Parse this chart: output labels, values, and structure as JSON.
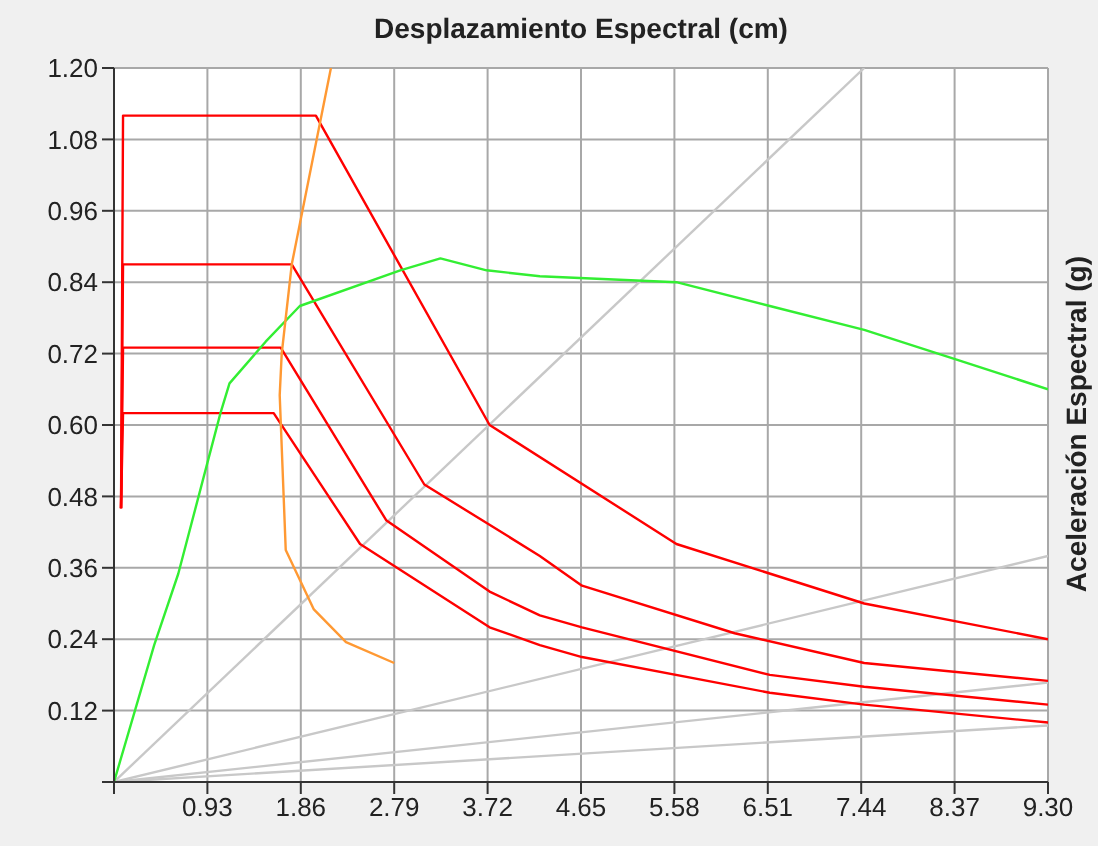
{
  "chart_data": {
    "type": "line",
    "xlabel": "Desplazamiento Espectral (cm)",
    "ylabel": "Aceleración Espectral (g)",
    "xlim": [
      0,
      9.3
    ],
    "xticks": [
      {
        "value": 0,
        "label": null
      },
      0.93,
      1.86,
      2.79,
      3.72,
      4.65,
      5.58,
      6.51,
      7.44,
      8.37,
      "9.30"
    ],
    "ylim": [
      0,
      1.2
    ],
    "yticks": [
      {
        "value": 0,
        "label": null
      },
      0.12,
      0.24,
      0.36,
      0.48,
      "0.60",
      0.72,
      0.84,
      0.96,
      1.08,
      "1.20"
    ],
    "grid": true,
    "series": [
      {
        "color": "#c8c8c8",
        "x": [
          0,
          7.47
        ],
        "values": [
          0,
          1.2
        ]
      },
      {
        "color": "#c8c8c8",
        "x": [
          0,
          9.3
        ],
        "values": [
          0,
          0.38
        ]
      },
      {
        "color": "#c8c8c8",
        "x": [
          0,
          9.3
        ],
        "values": [
          0,
          0.167
        ]
      },
      {
        "color": "#c8c8c8",
        "x": [
          0,
          9.3
        ],
        "values": [
          0,
          0.095
        ]
      },
      {
        "color": "#ff0000",
        "x": [
          0.07,
          0.09,
          2.01,
          3.74,
          5.6,
          7.47,
          9.3
        ],
        "values": [
          0.46,
          1.12,
          1.12,
          0.6,
          0.4,
          0.3,
          0.24
        ]
      },
      {
        "color": "#ff0000",
        "x": [
          0.07,
          0.09,
          1.77,
          3.09,
          4.24,
          4.66,
          6.18,
          7.47,
          9.3
        ],
        "values": [
          0.46,
          0.87,
          0.87,
          0.5,
          0.38,
          0.33,
          0.25,
          0.2,
          0.17
        ]
      },
      {
        "color": "#ff0000",
        "x": [
          0.07,
          0.09,
          1.66,
          2.71,
          3.74,
          4.24,
          4.66,
          6.53,
          7.47,
          9.3
        ],
        "values": [
          0.46,
          0.73,
          0.73,
          0.44,
          0.32,
          0.28,
          0.26,
          0.18,
          0.16,
          0.13
        ]
      },
      {
        "color": "#ff0000",
        "x": [
          0.07,
          0.09,
          1.59,
          2.45,
          3.74,
          4.24,
          4.66,
          6.53,
          7.47,
          9.3
        ],
        "values": [
          0.46,
          0.62,
          0.62,
          0.4,
          0.26,
          0.23,
          0.21,
          0.15,
          0.13,
          0.1
        ]
      },
      {
        "color": "#33ee33",
        "x": [
          0,
          0.4,
          0.64,
          1.06,
          1.15,
          1.51,
          1.85,
          2.85,
          3.25,
          3.71,
          4.24,
          5.6,
          6.53,
          7.47,
          8.39,
          9.3
        ],
        "values": [
          0,
          0.23,
          0.35,
          0.62,
          0.67,
          0.74,
          0.8,
          0.86,
          0.88,
          0.86,
          0.85,
          0.84,
          0.8,
          0.76,
          0.71,
          0.66
        ]
      },
      {
        "color": "#ff9933",
        "x": [
          2.79,
          2.31,
          1.99,
          1.71,
          1.65,
          1.67,
          1.77,
          2.16
        ],
        "values": [
          0.2,
          0.235,
          0.29,
          0.39,
          0.65,
          0.72,
          0.87,
          1.2
        ]
      }
    ]
  }
}
